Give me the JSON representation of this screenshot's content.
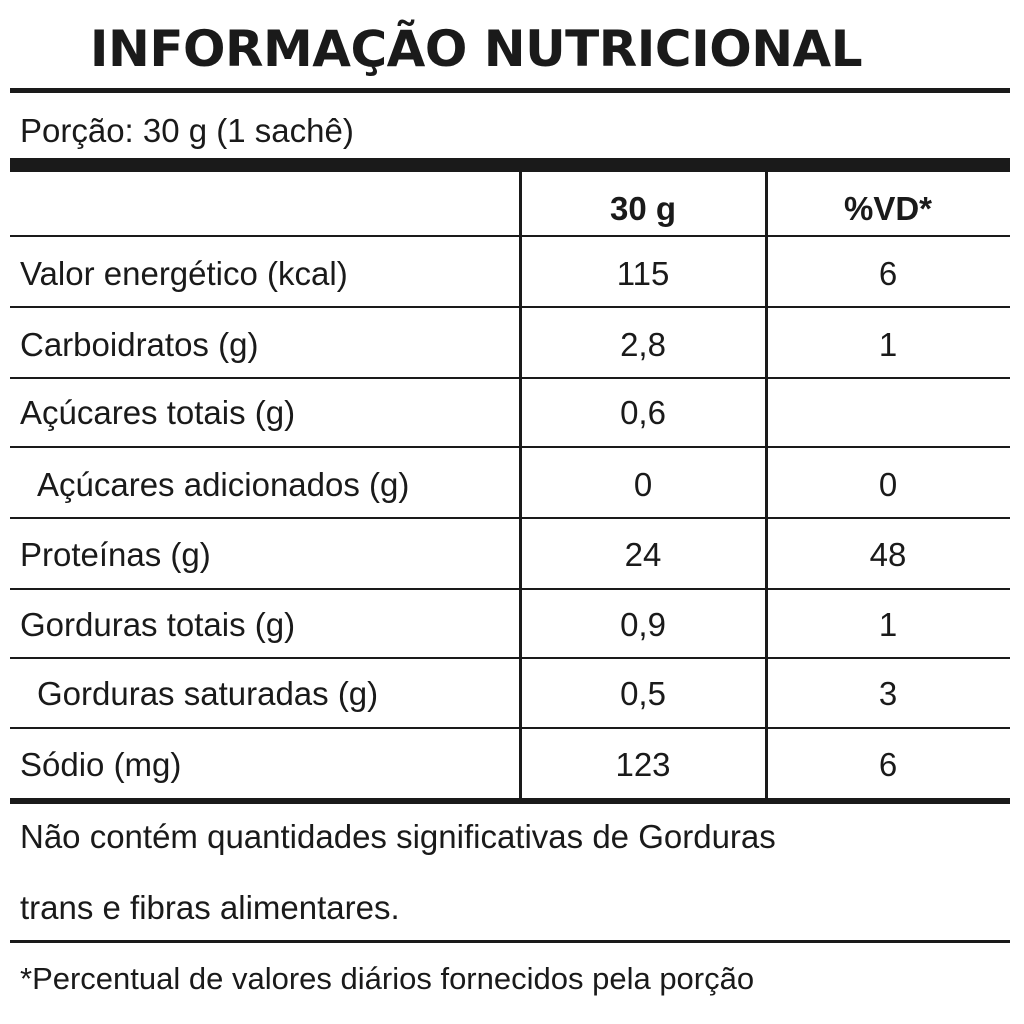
{
  "title": "INFORMAÇÃO NUTRICIONAL",
  "portion": "Porção: 30 g (1 sachê)",
  "table": {
    "headers": {
      "label": "",
      "amount": "30 g",
      "vd": "%VD*"
    },
    "rows": [
      {
        "label": "Valor energético (kcal)",
        "amount": "115",
        "vd": "6"
      },
      {
        "label": "Carboidratos (g)",
        "amount": "2,8",
        "vd": "1"
      },
      {
        "label": "Açúcares totais (g)",
        "amount": "0,6",
        "vd": ""
      },
      {
        "label": "Açúcares adicionados (g)",
        "amount": "0",
        "vd": "0"
      },
      {
        "label": "Proteínas (g)",
        "amount": "24",
        "vd": "48"
      },
      {
        "label": "Gorduras totais (g)",
        "amount": "0,9",
        "vd": "1"
      },
      {
        "label": "Gorduras saturadas (g)",
        "amount": "0,5",
        "vd": "3"
      },
      {
        "label": "Sódio (mg)",
        "amount": "123",
        "vd": "6"
      }
    ]
  },
  "footer": {
    "line1": "Não contém quantidades significativas de Gorduras",
    "line2": "trans e fibras alimentares."
  },
  "note": "*Percentual de valores diários fornecidos pela porção"
}
